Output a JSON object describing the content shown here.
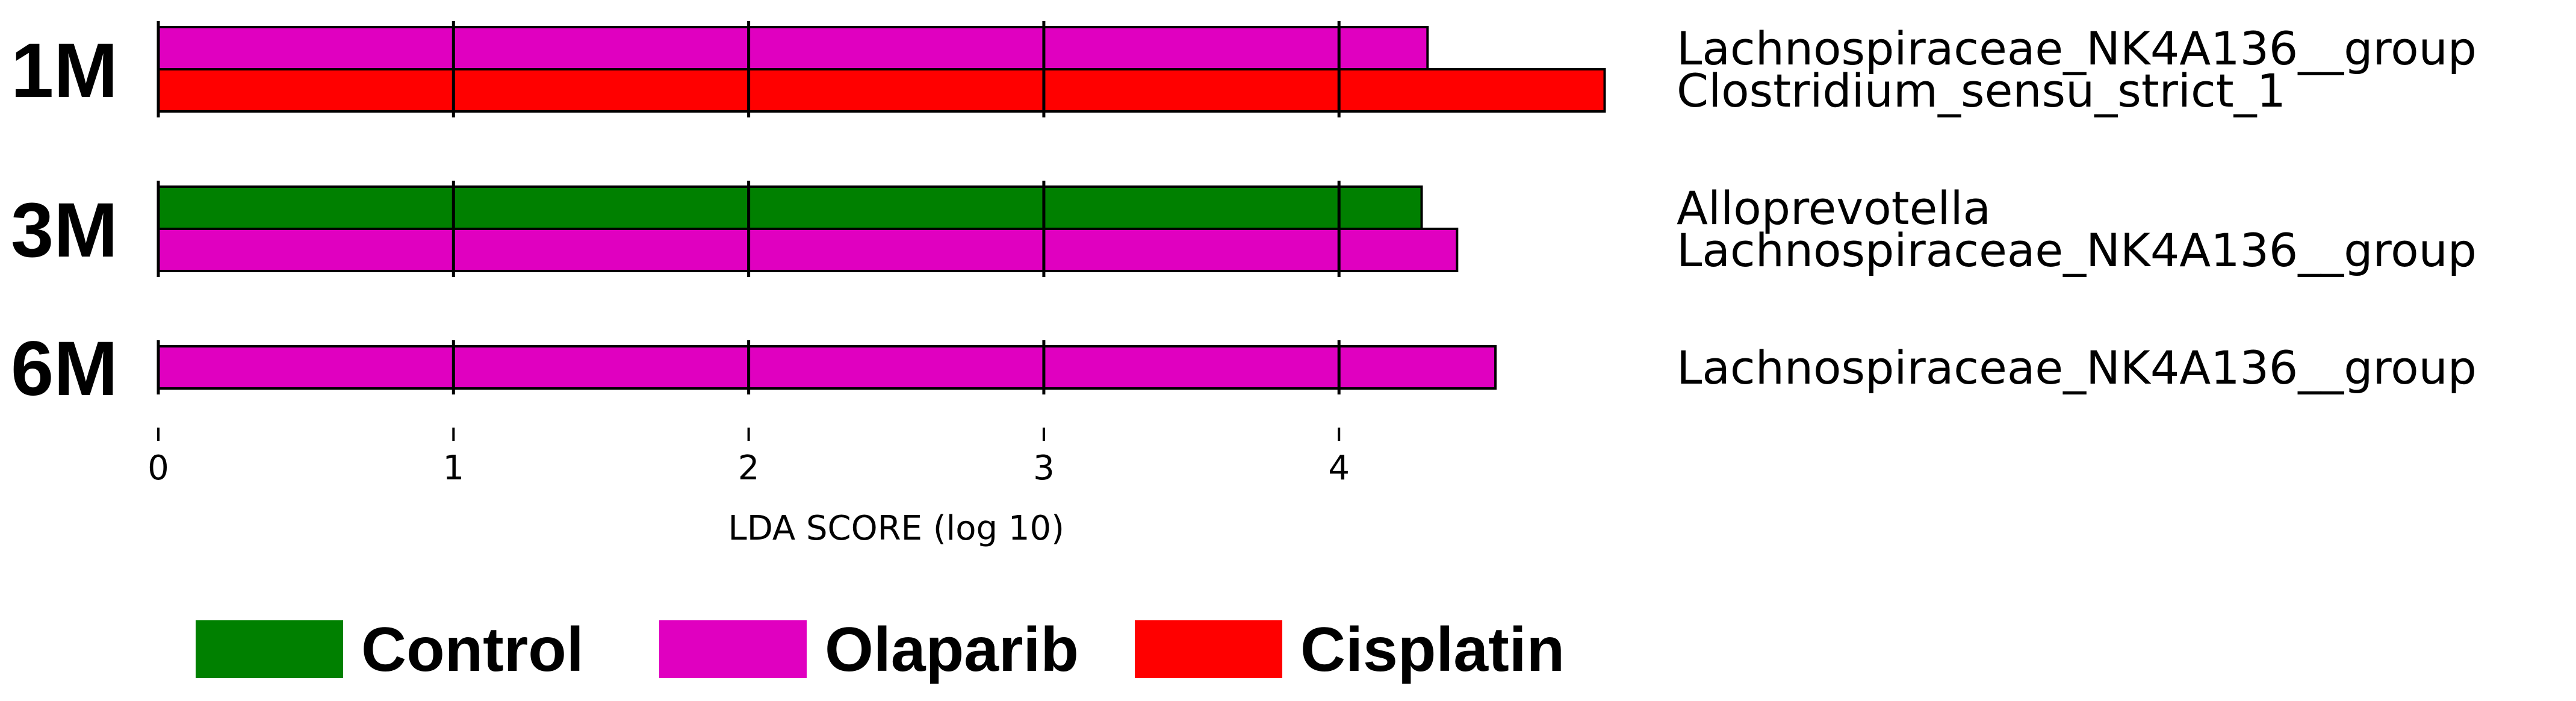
{
  "chart_data": {
    "type": "bar",
    "orientation": "horizontal",
    "xlabel": "LDA SCORE (log 10)",
    "xlim": [
      0,
      4.95
    ],
    "xticks": [
      0,
      1,
      2,
      3,
      4
    ],
    "grid": true,
    "legend_position": "bottom",
    "panels": [
      {
        "label": "1M",
        "bars": [
          {
            "feature": "Lachnospiraceae_NK4A136__group",
            "group": "Olaparib",
            "value": 4.3
          },
          {
            "feature": "Clostridium_sensu_strict_1",
            "group": "Cisplatin",
            "value": 4.9
          }
        ]
      },
      {
        "label": "3M",
        "bars": [
          {
            "feature": "Alloprevotella",
            "group": "Control",
            "value": 4.28
          },
          {
            "feature": "Lachnospiraceae_NK4A136__group",
            "group": "Olaparib",
            "value": 4.4
          }
        ]
      },
      {
        "label": "6M",
        "bars": [
          {
            "feature": "Lachnospiraceae_NK4A136__group",
            "group": "Olaparib",
            "value": 4.53
          }
        ]
      }
    ],
    "legend": [
      {
        "name": "Control",
        "color": "#008000"
      },
      {
        "name": "Olaparib",
        "color": "#e000c0"
      },
      {
        "name": "Cisplatin",
        "color": "#ff0000"
      }
    ]
  }
}
